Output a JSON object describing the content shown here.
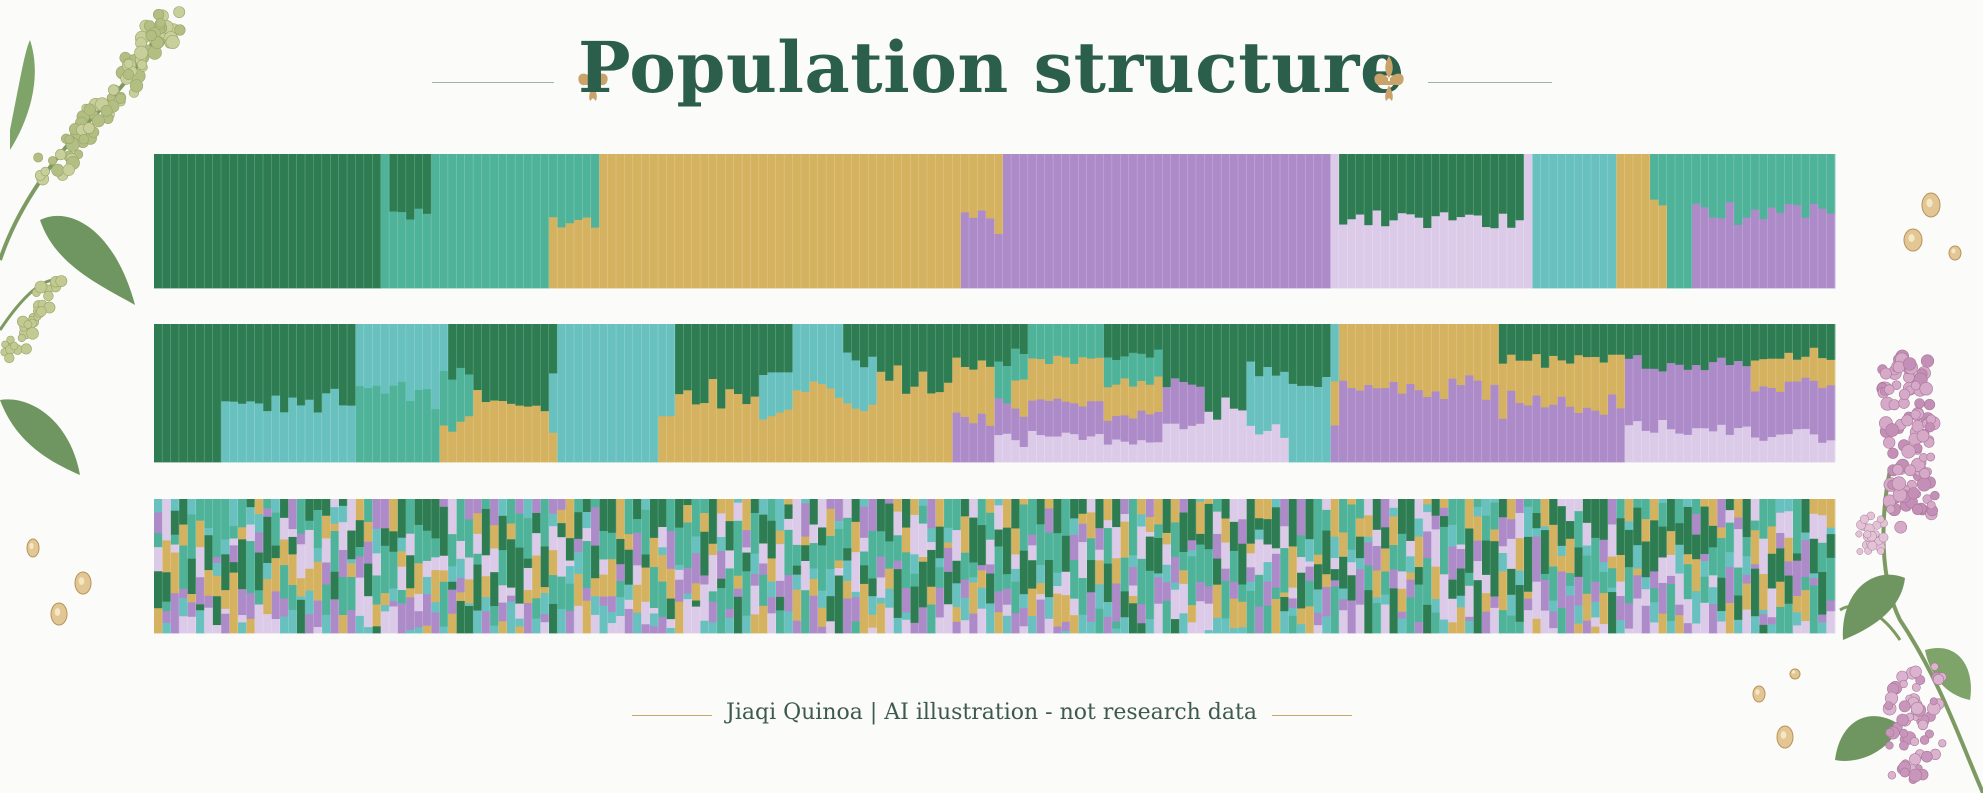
{
  "title": "Population structure",
  "footer": "Jiaqi Quinoa | AI illustration - not research data",
  "colors": {
    "title": "#2b5f4b",
    "rule": "#9db3a8",
    "gold_rule": "#c9a66b",
    "fleur": "#c9a36a",
    "cluster_green": "#2e7d52",
    "cluster_teal": "#4fb39a",
    "cluster_cyan": "#68c1bf",
    "cluster_gold": "#d5b25f",
    "cluster_purple": "#ad8bc9",
    "cluster_lavender": "#dccbe8"
  },
  "icons": [
    "fleur-de-lis-icon",
    "quinoa-plant-icon",
    "seed-icon"
  ],
  "chart_data": [
    {
      "type": "bar",
      "stacked": true,
      "ylim": [
        0,
        1
      ],
      "bar_count": 200,
      "series": [
        {
          "color": "#2e7d52",
          "segments": [
            {
              "from": 0,
              "to": 27,
              "proportion": 1.0
            },
            {
              "from": 28,
              "to": 33,
              "proportion": 0.75
            },
            {
              "from": 141,
              "to": 163,
              "proportion": 0.5
            }
          ]
        },
        {
          "color": "#4fb39a",
          "segments": [
            {
              "from": 27,
              "to": 53,
              "proportion": 1.0
            },
            {
              "from": 178,
              "to": 200,
              "proportion": 0.6
            }
          ]
        },
        {
          "color": "#68c1bf",
          "segments": [
            {
              "from": 164,
              "to": 174,
              "proportion": 1.0
            }
          ]
        },
        {
          "color": "#d5b25f",
          "segments": [
            {
              "from": 47,
              "to": 101,
              "proportion": 1.0
            },
            {
              "from": 174,
              "to": 180,
              "proportion": 1.0
            }
          ]
        },
        {
          "color": "#ad8bc9",
          "segments": [
            {
              "from": 96,
              "to": 140,
              "proportion": 1.0
            },
            {
              "from": 183,
              "to": 200,
              "proportion": 0.8
            }
          ]
        },
        {
          "color": "#dccbe8",
          "segments": [
            {
              "from": 140,
              "to": 164,
              "proportion": 0.5
            }
          ]
        }
      ]
    },
    {
      "type": "bar",
      "stacked": true,
      "ylim": [
        0,
        1
      ],
      "bar_count": 200,
      "series": [
        {
          "color": "#2e7d52",
          "segments": [
            {
              "from": 0,
              "to": 24,
              "proportion": 0.8
            },
            {
              "from": 35,
              "to": 48,
              "proportion": 0.7
            },
            {
              "from": 62,
              "to": 76,
              "proportion": 0.6
            },
            {
              "from": 82,
              "to": 104,
              "proportion": 0.4
            },
            {
              "from": 113,
              "to": 140,
              "proportion": 0.5
            },
            {
              "from": 160,
              "to": 200,
              "proportion": 0.35
            }
          ]
        },
        {
          "color": "#68c1bf",
          "segments": [
            {
              "from": 8,
              "to": 35,
              "proportion": 0.6
            },
            {
              "from": 47,
              "to": 62,
              "proportion": 1.0
            },
            {
              "from": 72,
              "to": 86,
              "proportion": 0.5
            },
            {
              "from": 130,
              "to": 141,
              "proportion": 0.6
            }
          ]
        },
        {
          "color": "#4fb39a",
          "segments": [
            {
              "from": 24,
              "to": 38,
              "proportion": 0.6
            },
            {
              "from": 100,
              "to": 120,
              "proportion": 0.4
            }
          ]
        },
        {
          "color": "#d5b25f",
          "segments": [
            {
              "from": 34,
              "to": 48,
              "proportion": 0.5
            },
            {
              "from": 60,
              "to": 100,
              "proportion": 0.6
            },
            {
              "from": 102,
              "to": 120,
              "proportion": 0.5
            },
            {
              "from": 140,
              "to": 175,
              "proportion": 0.45
            },
            {
              "from": 190,
              "to": 200,
              "proportion": 0.3
            }
          ]
        },
        {
          "color": "#ad8bc9",
          "segments": [
            {
              "from": 95,
              "to": 125,
              "proportion": 0.4
            },
            {
              "from": 140,
              "to": 200,
              "proportion": 0.55
            }
          ]
        },
        {
          "color": "#dccbe8",
          "segments": [
            {
              "from": 100,
              "to": 135,
              "proportion": 0.3
            },
            {
              "from": 175,
              "to": 200,
              "proportion": 0.3
            }
          ]
        }
      ]
    },
    {
      "type": "bar",
      "stacked": true,
      "ylim": [
        0,
        1
      ],
      "bar_count": 200,
      "series": [
        {
          "color": "#2e7d52",
          "segments": [
            {
              "from": 0,
              "to": 200,
              "proportion": 0.22
            }
          ]
        },
        {
          "color": "#4fb39a",
          "segments": [
            {
              "from": 0,
              "to": 200,
              "proportion": 0.22
            }
          ]
        },
        {
          "color": "#68c1bf",
          "segments": [
            {
              "from": 0,
              "to": 200,
              "proportion": 0.1
            }
          ]
        },
        {
          "color": "#d5b25f",
          "segments": [
            {
              "from": 0,
              "to": 200,
              "proportion": 0.16
            }
          ]
        },
        {
          "color": "#ad8bc9",
          "segments": [
            {
              "from": 0,
              "to": 200,
              "proportion": 0.15
            }
          ]
        },
        {
          "color": "#dccbe8",
          "segments": [
            {
              "from": 0,
              "to": 200,
              "proportion": 0.15
            }
          ]
        }
      ]
    }
  ]
}
